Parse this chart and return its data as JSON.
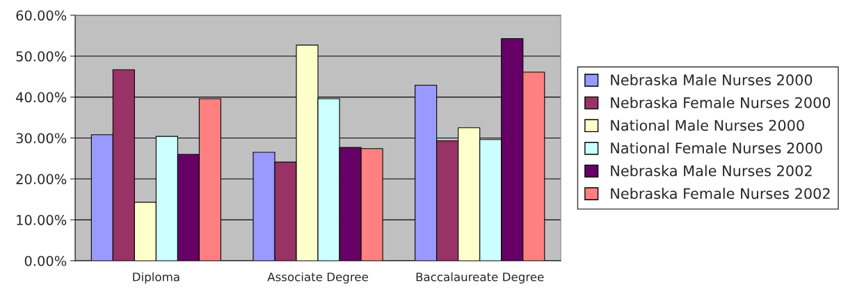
{
  "chart_data": {
    "type": "bar",
    "categories": [
      "Diploma",
      "Associate Degree",
      "Baccalaureate Degree"
    ],
    "series": [
      {
        "name": "Nebraska Male Nurses 2000",
        "color": "#9999ff",
        "values": [
          30.8,
          26.5,
          42.9
        ]
      },
      {
        "name": "Nebraska Female Nurses 2000",
        "color": "#993366",
        "values": [
          46.7,
          24.1,
          29.3
        ]
      },
      {
        "name": "National Male Nurses 2000",
        "color": "#ffffcc",
        "values": [
          14.3,
          52.7,
          32.5
        ]
      },
      {
        "name": "National Female Nurses 2000",
        "color": "#ccffff",
        "values": [
          30.4,
          39.6,
          29.6
        ]
      },
      {
        "name": "Nebraska Male Nurses 2002",
        "color": "#660066",
        "values": [
          26.0,
          27.7,
          54.3
        ]
      },
      {
        "name": "Nebraska Female Nurses 2002",
        "color": "#ff8080",
        "values": [
          39.6,
          27.4,
          46.1
        ]
      }
    ],
    "ylim": [
      0,
      60
    ],
    "yticks": [
      {
        "value": 0,
        "label": "0.00%"
      },
      {
        "value": 10,
        "label": "10.00%"
      },
      {
        "value": 20,
        "label": "20.00%"
      },
      {
        "value": 30,
        "label": "30.00%"
      },
      {
        "value": 40,
        "label": "40.00%"
      },
      {
        "value": 50,
        "label": "50.00%"
      },
      {
        "value": 60,
        "label": "60.00%"
      }
    ],
    "grid": "y",
    "legend": "right"
  }
}
